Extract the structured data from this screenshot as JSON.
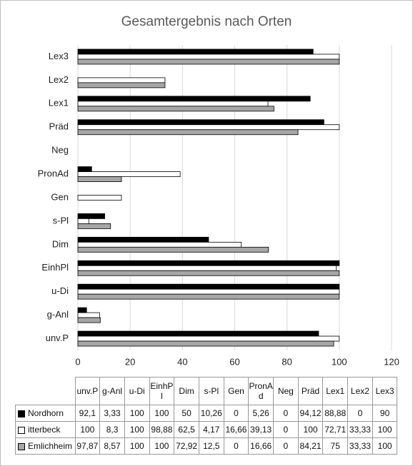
{
  "chart_data": {
    "type": "bar",
    "orientation": "horizontal",
    "title": "Gesamtergebnis nach Orten",
    "categories": [
      "unv.P",
      "g-Anl",
      "u-Di",
      "EinhPl",
      "Dim",
      "s-Pl",
      "Gen",
      "PronAd",
      "Neg",
      "Präd",
      "Lex1",
      "Lex2",
      "Lex3"
    ],
    "series": [
      {
        "name": "Nordhorn",
        "color": "#000000",
        "values": [
          92.1,
          3.33,
          100,
          100,
          50,
          10.26,
          0,
          5.26,
          0,
          94.12,
          88.88,
          0,
          90
        ],
        "value_labels": [
          "92,1",
          "3,33",
          "100",
          "100",
          "50",
          "10,26",
          "0",
          "5,26",
          "0",
          "94,12",
          "88,88",
          "0",
          "90"
        ]
      },
      {
        "name": "itterbeck",
        "color": "#ffffff",
        "values": [
          100,
          8.3,
          100,
          98.88,
          62.5,
          4.17,
          16.66,
          39.13,
          0,
          100,
          72.71,
          33.33,
          100
        ],
        "value_labels": [
          "100",
          "8,3",
          "100",
          "98,88",
          "62,5",
          "4,17",
          "16,66",
          "39,13",
          "0",
          "100",
          "72,71",
          "33,33",
          "100"
        ]
      },
      {
        "name": "Emlichheim",
        "color": "#a6a6a6",
        "values": [
          97.87,
          8.57,
          100,
          100,
          72.92,
          12.5,
          0,
          16.66,
          0,
          84.21,
          75,
          33.33,
          100
        ],
        "value_labels": [
          "97,87",
          "8,57",
          "100",
          "100",
          "72,92",
          "12,5",
          "0",
          "16,66",
          "0",
          "84,21",
          "75",
          "33,33",
          "100"
        ]
      }
    ],
    "xlim": [
      0,
      120
    ],
    "xticks": [
      0,
      20,
      40,
      60,
      80,
      100,
      120
    ],
    "grid": true
  }
}
